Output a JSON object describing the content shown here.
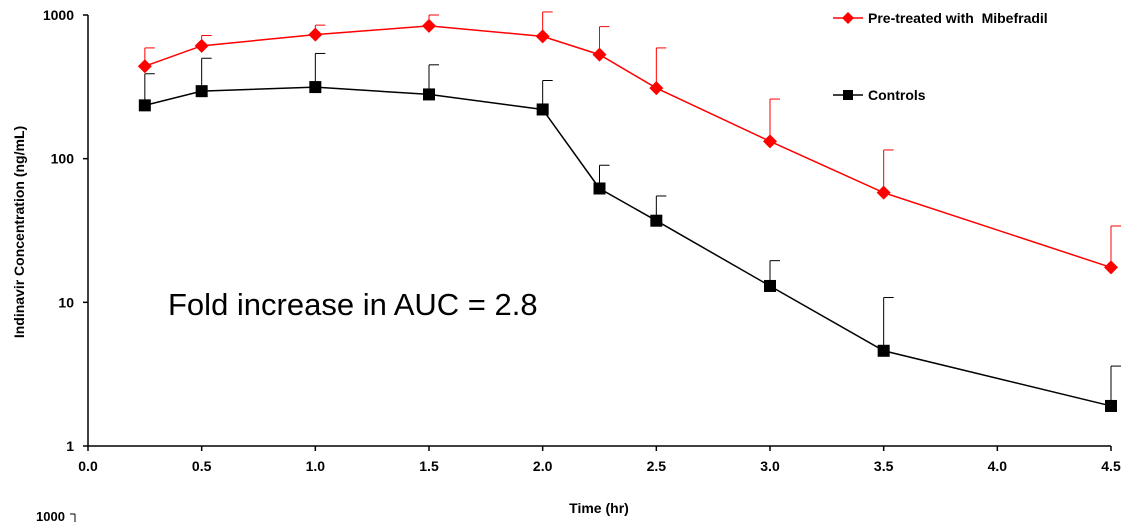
{
  "chart_data": {
    "type": "line",
    "xlabel": "Time (hr)",
    "ylabel": "Indinavir Concentration (ng/mL)",
    "xlim": [
      0,
      4.5
    ],
    "ylim": [
      1,
      1000
    ],
    "yscale": "log",
    "x_ticks": [
      "0.0",
      "0.5",
      "1.0",
      "1.5",
      "2.0",
      "2.5",
      "3.0",
      "3.5",
      "4.0",
      "4.5"
    ],
    "y_ticks": [
      "1",
      "10",
      "100",
      "1000"
    ],
    "grid": false,
    "legend_position": "top-right",
    "annotation": "Fold increase in AUC = 2.8",
    "extra_label": "1000",
    "series": [
      {
        "name": "Pre-treated with  Mibefradil",
        "color": "#ff0000",
        "marker": "diamond",
        "x": [
          0.25,
          0.5,
          1.0,
          1.5,
          2.0,
          2.25,
          2.5,
          3.0,
          3.5,
          4.5
        ],
        "y": [
          440,
          610,
          730,
          840,
          710,
          530,
          310,
          132,
          58,
          17.5
        ],
        "error_upper": [
          590,
          720,
          850,
          1000,
          1050,
          830,
          590,
          260,
          115,
          34
        ]
      },
      {
        "name": "Controls",
        "color": "#000000",
        "marker": "square",
        "x": [
          0.25,
          0.5,
          1.0,
          1.5,
          2.0,
          2.25,
          2.5,
          3.0,
          3.5,
          4.5
        ],
        "y": [
          235,
          295,
          315,
          280,
          220,
          62,
          37,
          13,
          4.6,
          1.9
        ],
        "error_upper": [
          390,
          500,
          540,
          450,
          350,
          90,
          55,
          19.5,
          10.8,
          3.6
        ]
      }
    ]
  }
}
